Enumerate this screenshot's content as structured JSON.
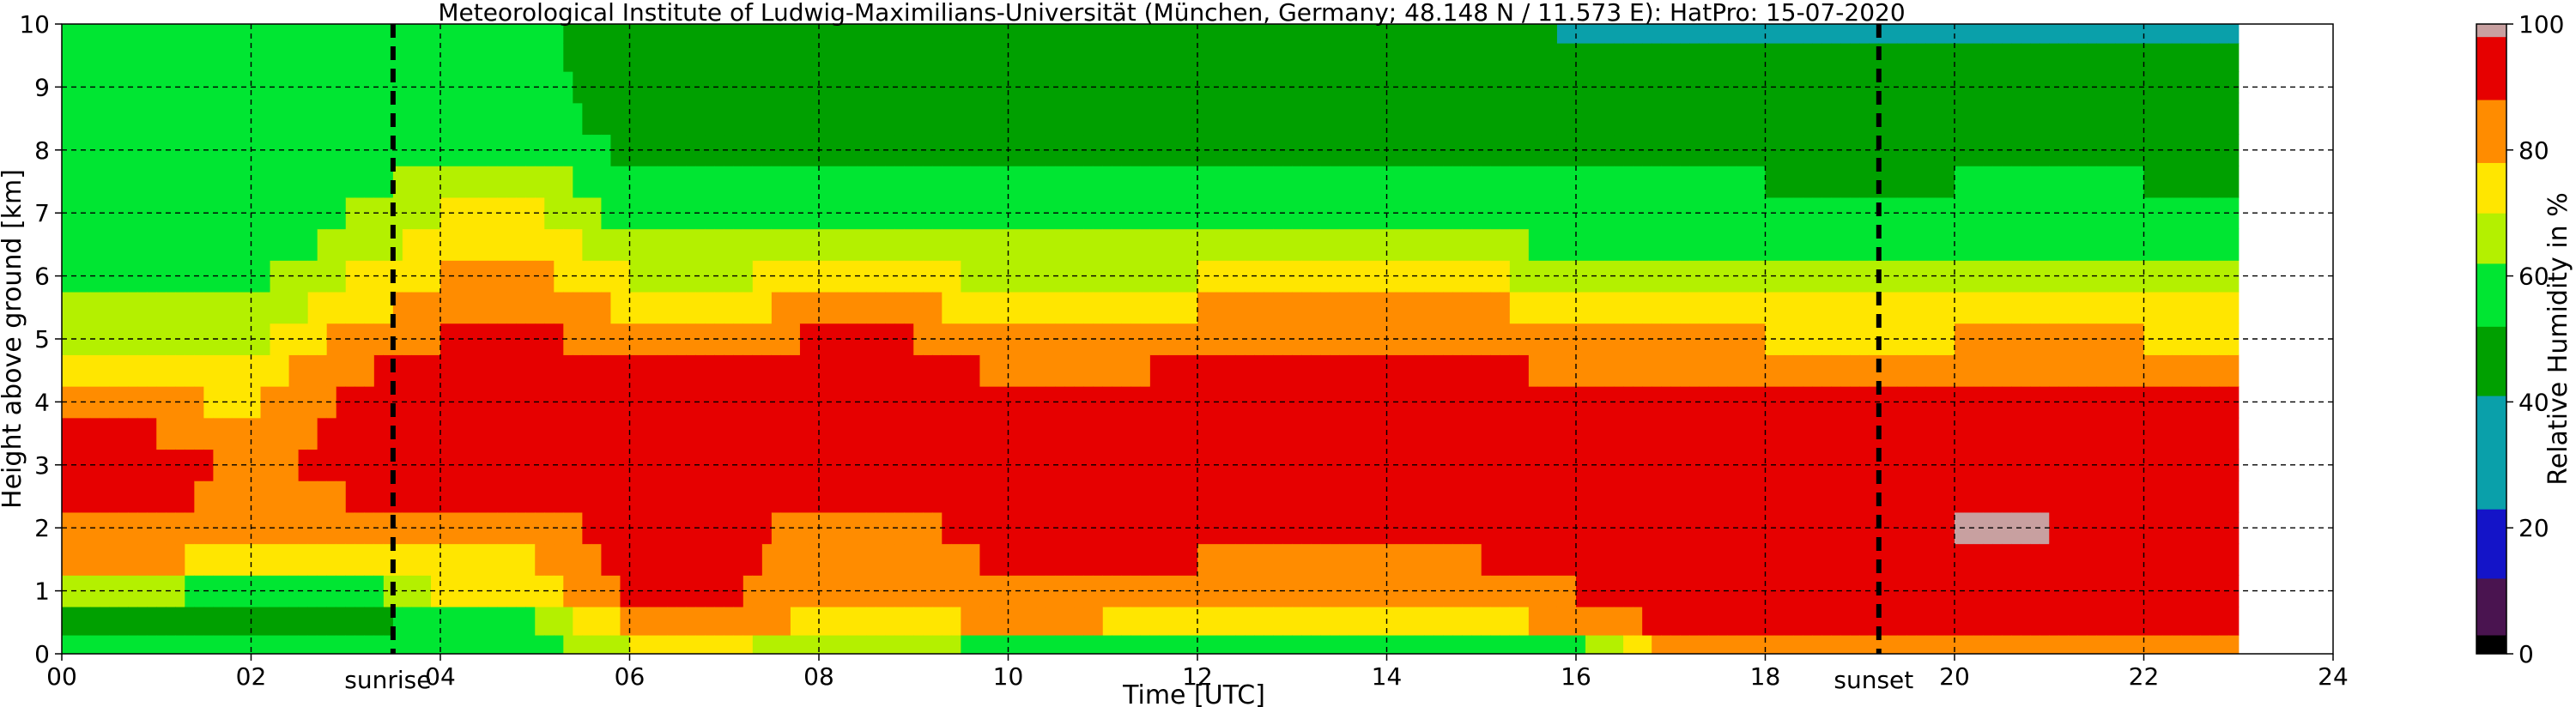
{
  "chart_data": {
    "type": "heatmap",
    "title": "Meteorological Institute of Ludwig-Maximilians-Universität (München, Germany; 48.148 N / 11.573 E):    HatPro: 15-07-2020",
    "xlabel": "Time [UTC]",
    "ylabel": "Height above ground [km]",
    "colorbar_label": "Relative Humidity in %",
    "xlim": [
      0,
      24
    ],
    "ylim": [
      0,
      10
    ],
    "x_data_end": 23,
    "x_ticks": [
      0,
      2,
      4,
      6,
      8,
      10,
      12,
      14,
      16,
      18,
      20,
      22,
      24
    ],
    "x_tick_labels": [
      "00",
      "02",
      "04",
      "06",
      "08",
      "10",
      "12",
      "14",
      "16",
      "18",
      "20",
      "22",
      "24"
    ],
    "y_ticks": [
      0,
      1,
      2,
      3,
      4,
      5,
      6,
      7,
      8,
      9,
      10
    ],
    "y_tick_labels": [
      "0",
      "1",
      "2",
      "3",
      "4",
      "5",
      "6",
      "7",
      "8",
      "9",
      "10"
    ],
    "colorbar_ticks": [
      0,
      20,
      40,
      60,
      80,
      100
    ],
    "colorbar_tick_labels": [
      "0",
      "20",
      "40",
      "60",
      "80",
      "100"
    ],
    "colorscale": [
      {
        "from": 0,
        "to": 3,
        "color": "#000000"
      },
      {
        "from": 3,
        "to": 12,
        "color": "#4a1450"
      },
      {
        "from": 12,
        "to": 23,
        "color": "#1414c8"
      },
      {
        "from": 23,
        "to": 41,
        "color": "#0aa0aa"
      },
      {
        "from": 41,
        "to": 52,
        "color": "#00a000"
      },
      {
        "from": 52,
        "to": 62,
        "color": "#00e632"
      },
      {
        "from": 62,
        "to": 70,
        "color": "#b4f000"
      },
      {
        "from": 70,
        "to": 78,
        "color": "#ffe600"
      },
      {
        "from": 78,
        "to": 88,
        "color": "#ff8c00"
      },
      {
        "from": 88,
        "to": 98,
        "color": "#e60000"
      },
      {
        "from": 98,
        "to": 100,
        "color": "#c8a0a0"
      }
    ],
    "grid": true,
    "annotations": [
      {
        "x": 3.5,
        "label": "sunrise"
      },
      {
        "x": 19.2,
        "label": "sunset"
      }
    ],
    "approx_humidity_profile": {
      "heights_km": [
        0.1,
        0.5,
        1.0,
        1.5,
        2.0,
        2.5,
        3.0,
        3.5,
        4.0,
        4.5,
        5.0,
        5.5,
        6.0,
        6.5,
        7.0,
        7.5,
        8.0,
        8.5,
        9.0,
        9.5,
        9.9
      ],
      "columns": [
        {
          "t": 0.0,
          "rh": [
            55,
            50,
            62,
            80,
            86,
            92,
            93,
            88,
            82,
            75,
            70,
            66,
            62,
            58,
            56,
            55,
            54,
            53,
            52,
            52,
            52
          ]
        },
        {
          "t": 1.0,
          "rh": [
            55,
            50,
            65,
            82,
            88,
            92,
            93,
            88,
            80,
            74,
            68,
            64,
            60,
            56,
            55,
            54,
            53,
            52,
            52,
            52,
            52
          ]
        },
        {
          "t": 2.0,
          "rh": [
            55,
            45,
            55,
            70,
            78,
            82,
            84,
            80,
            76,
            72,
            68,
            64,
            60,
            56,
            55,
            54,
            53,
            52,
            52,
            52,
            52
          ]
        },
        {
          "t": 3.0,
          "rh": [
            55,
            45,
            56,
            72,
            80,
            88,
            92,
            92,
            90,
            86,
            80,
            74,
            70,
            65,
            62,
            58,
            55,
            54,
            53,
            53,
            53
          ]
        },
        {
          "t": 4.0,
          "rh": [
            55,
            60,
            72,
            76,
            82,
            90,
            93,
            93,
            93,
            92,
            88,
            82,
            78,
            74,
            70,
            66,
            60,
            57,
            55,
            54,
            54
          ]
        },
        {
          "t": 5.0,
          "rh": [
            58,
            62,
            74,
            78,
            84,
            92,
            94,
            94,
            94,
            93,
            90,
            84,
            80,
            76,
            72,
            68,
            62,
            58,
            56,
            55,
            55
          ]
        },
        {
          "t": 6.0,
          "rh": [
            70,
            80,
            90,
            92,
            92,
            93,
            94,
            94,
            93,
            90,
            84,
            76,
            70,
            64,
            58,
            54,
            50,
            46,
            45,
            44,
            43
          ]
        },
        {
          "t": 7.0,
          "rh": [
            72,
            82,
            90,
            92,
            92,
            93,
            94,
            94,
            92,
            88,
            82,
            74,
            68,
            62,
            57,
            53,
            50,
            47,
            46,
            45,
            44
          ]
        },
        {
          "t": 8.0,
          "rh": [
            66,
            76,
            80,
            82,
            84,
            92,
            94,
            94,
            93,
            92,
            90,
            82,
            74,
            66,
            60,
            55,
            52,
            48,
            46,
            45,
            44
          ]
        },
        {
          "t": 9.0,
          "rh": [
            64,
            76,
            82,
            84,
            86,
            93,
            94,
            94,
            93,
            92,
            88,
            80,
            72,
            64,
            58,
            54,
            50,
            47,
            46,
            45,
            44
          ]
        },
        {
          "t": 10.0,
          "rh": [
            60,
            80,
            88,
            90,
            92,
            93,
            94,
            93,
            90,
            86,
            80,
            74,
            68,
            62,
            57,
            53,
            50,
            47,
            46,
            45,
            44
          ]
        },
        {
          "t": 11.0,
          "rh": [
            60,
            78,
            86,
            88,
            90,
            93,
            94,
            93,
            90,
            86,
            80,
            74,
            68,
            62,
            57,
            53,
            50,
            47,
            46,
            45,
            44
          ]
        },
        {
          "t": 12.0,
          "rh": [
            60,
            76,
            84,
            88,
            90,
            93,
            94,
            94,
            92,
            90,
            86,
            78,
            70,
            63,
            57,
            53,
            50,
            47,
            46,
            45,
            44
          ]
        },
        {
          "t": 13.0,
          "rh": [
            60,
            76,
            82,
            86,
            88,
            93,
            94,
            94,
            92,
            90,
            86,
            78,
            70,
            63,
            57,
            53,
            50,
            47,
            46,
            45,
            44
          ]
        },
        {
          "t": 14.0,
          "rh": [
            60,
            76,
            82,
            86,
            88,
            93,
            94,
            94,
            93,
            90,
            86,
            78,
            70,
            63,
            57,
            53,
            50,
            47,
            46,
            45,
            44
          ]
        },
        {
          "t": 15.0,
          "rh": [
            60,
            76,
            84,
            88,
            90,
            93,
            94,
            94,
            93,
            92,
            88,
            80,
            72,
            64,
            58,
            54,
            50,
            47,
            46,
            45,
            44
          ]
        },
        {
          "t": 16.0,
          "rh": [
            60,
            80,
            88,
            90,
            92,
            93,
            94,
            93,
            90,
            84,
            78,
            72,
            66,
            60,
            56,
            52,
            48,
            45,
            43,
            42,
            40
          ]
        },
        {
          "t": 17.0,
          "rh": [
            82,
            92,
            94,
            95,
            95,
            95,
            94,
            93,
            90,
            84,
            78,
            72,
            66,
            60,
            56,
            52,
            48,
            45,
            43,
            42,
            40
          ]
        },
        {
          "t": 18.0,
          "rh": [
            84,
            94,
            95,
            96,
            97,
            95,
            94,
            93,
            90,
            84,
            78,
            72,
            66,
            60,
            56,
            52,
            48,
            45,
            43,
            42,
            40
          ]
        },
        {
          "t": 19.0,
          "rh": [
            84,
            94,
            95,
            96,
            97,
            95,
            94,
            92,
            88,
            82,
            76,
            70,
            64,
            58,
            54,
            50,
            46,
            44,
            42,
            41,
            40
          ]
        },
        {
          "t": 20.0,
          "rh": [
            84,
            94,
            95,
            96,
            98,
            96,
            94,
            93,
            90,
            84,
            78,
            72,
            66,
            60,
            56,
            52,
            48,
            45,
            43,
            42,
            40
          ]
        },
        {
          "t": 21.0,
          "rh": [
            84,
            94,
            95,
            96,
            98,
            96,
            94,
            93,
            90,
            84,
            78,
            72,
            66,
            60,
            56,
            52,
            48,
            45,
            43,
            42,
            40
          ]
        },
        {
          "t": 22.0,
          "rh": [
            84,
            94,
            95,
            96,
            97,
            95,
            94,
            93,
            90,
            84,
            78,
            72,
            66,
            60,
            56,
            52,
            48,
            45,
            43,
            42,
            40
          ]
        },
        {
          "t": 23.0,
          "rh": [
            84,
            92,
            94,
            95,
            95,
            94,
            93,
            92,
            88,
            82,
            76,
            70,
            64,
            58,
            54,
            50,
            46,
            44,
            42,
            41,
            40
          ]
        }
      ]
    }
  }
}
